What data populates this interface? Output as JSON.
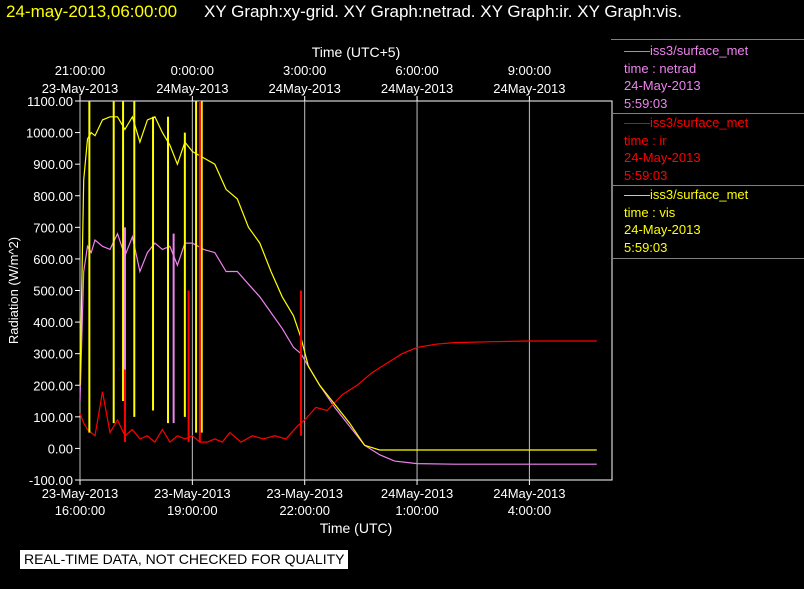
{
  "header": {
    "time_label": "24-may-2013,06:00:00",
    "graphs_label": "XY Graph:xy-grid.  XY Graph:netrad.  XY Graph:ir.  XY Graph:vis."
  },
  "colors": {
    "background": "#000000",
    "netrad": "#ee82ee",
    "ir": "#ff0000",
    "vis": "#ffff00",
    "grid": "#c0c0c0",
    "axis": "#ffffff"
  },
  "legend": [
    {
      "series": "netrad",
      "source": "——iss3/surface_met",
      "var": "time : netrad",
      "date": "24-May-2013",
      "time": "5:59:03"
    },
    {
      "series": "ir",
      "source": "——iss3/surface_met",
      "var": "time : ir",
      "date": "24-May-2013",
      "time": "5:59:03"
    },
    {
      "series": "vis",
      "source": "——iss3/surface_met",
      "var": "time : vis",
      "date": "24-May-2013",
      "time": "5:59:03"
    }
  ],
  "disclaimer": "REAL-TIME DATA, NOT CHECKED FOR QUALITY",
  "chart_data": {
    "type": "line",
    "ylabel": "Radiation (W/m^2)",
    "xlabel_bottom": "Time (UTC)",
    "xlabel_top": "Time (UTC+5)",
    "ylim": [
      -100,
      1100
    ],
    "xlim": [
      "2013-05-23 16:00",
      "2013-05-24 06:00"
    ],
    "y_ticks": [
      "1100.00",
      "1000.00",
      "900.00",
      "800.00",
      "700.00",
      "600.00",
      "500.00",
      "400.00",
      "300.00",
      "200.00",
      "100.00",
      "0.00",
      "-100.00"
    ],
    "x_ticks_bottom": [
      {
        "date": "23-May-2013",
        "time": "16:00:00",
        "hour": 0
      },
      {
        "date": "23-May-2013",
        "time": "19:00:00",
        "hour": 3
      },
      {
        "date": "23-May-2013",
        "time": "22:00:00",
        "hour": 6
      },
      {
        "date": "24May-2013",
        "time": "1:00:00",
        "hour": 9
      },
      {
        "date": "24May-2013",
        "time": "4:00:00",
        "hour": 12
      }
    ],
    "x_ticks_top": [
      {
        "time": "21:00:00",
        "date": "23-May-2013",
        "hour": 0
      },
      {
        "time": "0:00:00",
        "date": "24May-2013",
        "hour": 3
      },
      {
        "time": "3:00:00",
        "date": "24May-2013",
        "hour": 6
      },
      {
        "time": "6:00:00",
        "date": "24May-2013",
        "hour": 9
      },
      {
        "time": "9:00:00",
        "date": "24May-2013",
        "hour": 12
      }
    ],
    "grid": true,
    "series": [
      {
        "name": "netrad",
        "color": "#ee82ee",
        "x": [
          0,
          0.1,
          0.2,
          0.3,
          0.4,
          0.6,
          0.8,
          1.0,
          1.2,
          1.4,
          1.6,
          1.8,
          2.0,
          2.2,
          2.4,
          2.6,
          2.8,
          3.0,
          3.3,
          3.6,
          3.9,
          4.2,
          4.5,
          4.8,
          5.1,
          5.4,
          5.7,
          5.9,
          6.1,
          6.4,
          6.8,
          7.2,
          7.6,
          8.0,
          8.4,
          9.0,
          10.0,
          11.0,
          12.0,
          13.0,
          13.8
        ],
        "values": [
          150,
          560,
          640,
          620,
          660,
          640,
          630,
          680,
          610,
          670,
          560,
          620,
          650,
          630,
          640,
          580,
          650,
          650,
          630,
          620,
          560,
          560,
          520,
          480,
          430,
          380,
          320,
          300,
          260,
          200,
          130,
          70,
          10,
          -20,
          -40,
          -48,
          -50,
          -50,
          -50,
          -50,
          -50
        ]
      },
      {
        "name": "ir",
        "color": "#ff0000",
        "x": [
          0,
          0.1,
          0.2,
          0.4,
          0.6,
          0.8,
          1.0,
          1.2,
          1.4,
          1.6,
          1.8,
          2.0,
          2.2,
          2.4,
          2.6,
          2.8,
          3.0,
          3.2,
          3.4,
          3.6,
          3.8,
          4.0,
          4.3,
          4.6,
          4.9,
          5.2,
          5.5,
          5.8,
          6.0,
          6.3,
          6.6,
          7.0,
          7.4,
          7.8,
          8.2,
          8.6,
          9.0,
          9.5,
          10.0,
          11.0,
          12.0,
          13.0,
          13.8
        ],
        "values": [
          110,
          80,
          60,
          40,
          180,
          50,
          90,
          40,
          60,
          30,
          40,
          20,
          60,
          20,
          40,
          30,
          40,
          20,
          20,
          30,
          20,
          50,
          20,
          40,
          30,
          40,
          30,
          70,
          90,
          130,
          120,
          170,
          200,
          240,
          270,
          300,
          320,
          330,
          335,
          338,
          340,
          340,
          340
        ]
      },
      {
        "name": "vis",
        "color": "#ffff00",
        "x": [
          0,
          0.1,
          0.2,
          0.3,
          0.4,
          0.6,
          0.8,
          1.0,
          1.2,
          1.4,
          1.6,
          1.8,
          2.0,
          2.2,
          2.4,
          2.6,
          2.8,
          3.0,
          3.3,
          3.6,
          3.9,
          4.2,
          4.5,
          4.8,
          5.1,
          5.4,
          5.7,
          5.9,
          6.1,
          6.4,
          6.8,
          7.2,
          7.6,
          8.0,
          8.4,
          9.0,
          10.0,
          11.0,
          12.0,
          13.0,
          13.8
        ],
        "values": [
          200,
          850,
          980,
          1000,
          990,
          1040,
          1050,
          1050,
          1010,
          1050,
          970,
          1040,
          1050,
          1000,
          960,
          900,
          970,
          940,
          920,
          900,
          820,
          790,
          700,
          650,
          560,
          480,
          420,
          350,
          260,
          200,
          140,
          80,
          10,
          -5,
          -5,
          -5,
          -5,
          -5,
          -5,
          -5,
          -5
        ]
      }
    ],
    "spikes": [
      {
        "series": "vis",
        "x": 0.25,
        "values": [
          50,
          1100
        ]
      },
      {
        "series": "vis",
        "x": 0.9,
        "values": [
          80,
          1100
        ]
      },
      {
        "series": "vis",
        "x": 1.15,
        "values": [
          150,
          1100
        ]
      },
      {
        "series": "vis",
        "x": 1.45,
        "values": [
          100,
          1100
        ]
      },
      {
        "series": "vis",
        "x": 1.95,
        "values": [
          120,
          1050
        ]
      },
      {
        "series": "vis",
        "x": 2.35,
        "values": [
          80,
          1050
        ]
      },
      {
        "series": "vis",
        "x": 2.8,
        "values": [
          100,
          1000
        ]
      },
      {
        "series": "vis",
        "x": 3.1,
        "values": [
          50,
          1100
        ]
      },
      {
        "series": "vis",
        "x": 3.25,
        "values": [
          50,
          1100
        ]
      },
      {
        "series": "netrad",
        "x": 1.2,
        "values": [
          120,
          700
        ]
      },
      {
        "series": "netrad",
        "x": 2.5,
        "values": [
          80,
          680
        ]
      },
      {
        "series": "ir",
        "x": 2.9,
        "values": [
          20,
          500
        ]
      },
      {
        "series": "ir",
        "x": 1.2,
        "values": [
          20,
          250
        ]
      },
      {
        "series": "ir",
        "x": 3.2,
        "values": [
          20,
          1100
        ]
      },
      {
        "series": "ir",
        "x": 5.9,
        "values": [
          40,
          500
        ]
      }
    ]
  }
}
